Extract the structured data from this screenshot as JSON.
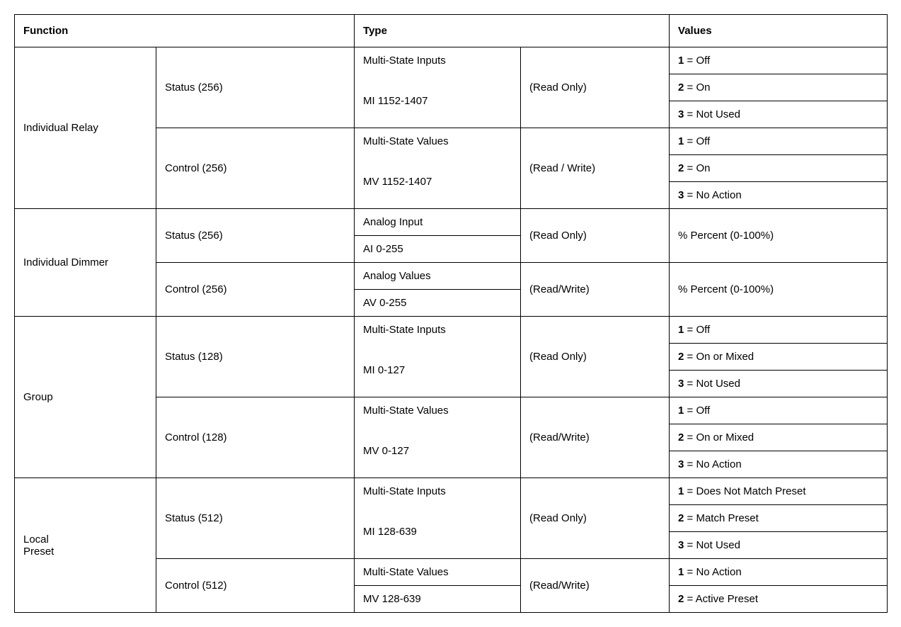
{
  "headers": {
    "function": "Function",
    "type": "Type",
    "values": "Values"
  },
  "rows": {
    "individual_relay": {
      "label": "Individual Relay",
      "status": {
        "label": "Status (256)",
        "type1": "Multi-State Inputs",
        "type2": "MI 1152-1407",
        "access": "(Read Only)",
        "v1_num": "1",
        "v1_txt": " = Off",
        "v2_num": "2",
        "v2_txt": " = On",
        "v3_num": "3",
        "v3_txt": " = Not Used"
      },
      "control": {
        "label": "Control (256)",
        "type1": "Multi-State Values",
        "type2": "MV 1152-1407",
        "access": "(Read / Write)",
        "v1_num": "1",
        "v1_txt": " = Off",
        "v2_num": "2",
        "v2_txt": " = On",
        "v3_num": "3",
        "v3_txt": " = No Action"
      }
    },
    "individual_dimmer": {
      "label": "Individual Dimmer",
      "status": {
        "label": "Status (256)",
        "type1": "Analog Input",
        "type2": "AI 0-255",
        "access": "(Read Only)",
        "v1": "% Percent (0-100%)"
      },
      "control": {
        "label": "Control (256)",
        "type1": "Analog Values",
        "type2": "AV 0-255",
        "access": "(Read/Write)",
        "v1": "% Percent (0-100%)"
      }
    },
    "group": {
      "label": "Group",
      "status": {
        "label": "Status (128)",
        "type1": "Multi-State Inputs",
        "type2": "MI 0-127",
        "access": "(Read Only)",
        "v1_num": "1",
        "v1_txt": " = Off",
        "v2_num": "2",
        "v2_txt": " = On or Mixed",
        "v3_num": "3",
        "v3_txt": " = Not Used"
      },
      "control": {
        "label": "Control (128)",
        "type1": "Multi-State Values",
        "type2": "MV 0-127",
        "access": "(Read/Write)",
        "v1_num": "1",
        "v1_txt": " = Off",
        "v2_num": "2",
        "v2_txt": " = On or Mixed",
        "v3_num": "3",
        "v3_txt": " = No Action"
      }
    },
    "local_preset": {
      "label_line1": "Local",
      "label_line2": "Preset",
      "status": {
        "label": "Status (512)",
        "type1": "Multi-State Inputs",
        "type2": "MI 128-639",
        "access": "(Read Only)",
        "v1_num": "1",
        "v1_txt": " = Does Not Match Preset",
        "v2_num": "2",
        "v2_txt": " = Match Preset",
        "v3_num": "3",
        "v3_txt": " = Not Used"
      },
      "control": {
        "label": "Control (512)",
        "type1": "Multi-State Values",
        "type2": "MV 128-639",
        "access": "(Read/Write)",
        "v1_num": "1",
        "v1_txt": " = No Action",
        "v2_num": "2",
        "v2_txt": " = Active Preset"
      }
    }
  }
}
